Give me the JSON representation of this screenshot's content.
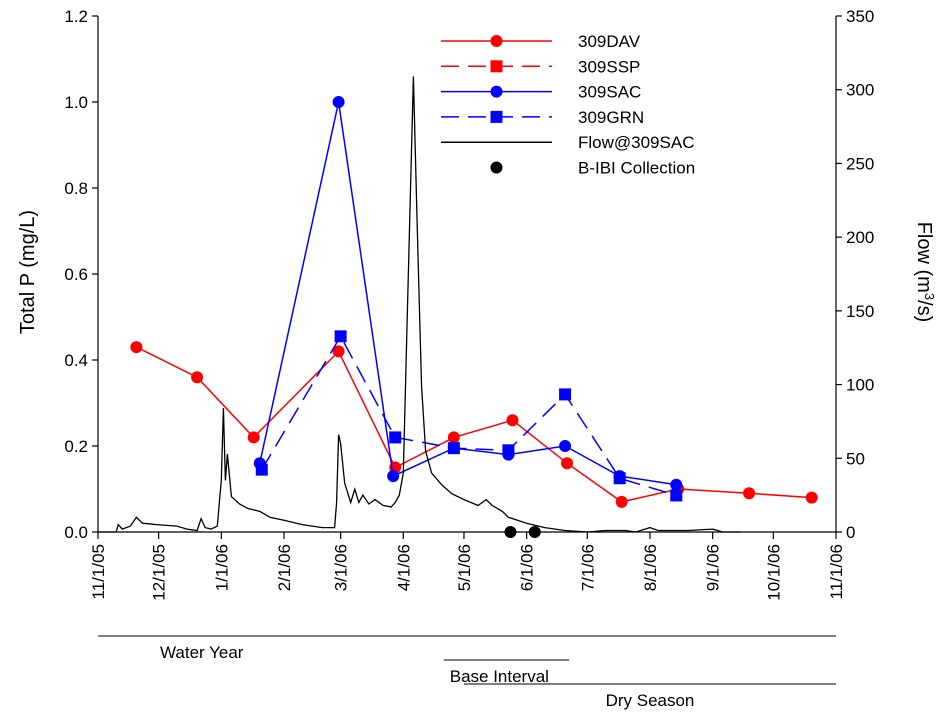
{
  "chart_data": {
    "type": "line",
    "ylabel_left": "Total P (mg/L)",
    "ylabel_right_prefix": "Flow (m",
    "ylabel_right_sup": "3",
    "ylabel_right_suffix": "/s)",
    "xlim": [
      "2005-11-01",
      "2006-11-01"
    ],
    "ylim_left": [
      0,
      1.2
    ],
    "ylim_right": [
      0,
      350
    ],
    "x_ticks": [
      "11/1/05",
      "12/1/05",
      "1/1/06",
      "2/1/06",
      "3/1/06",
      "4/1/06",
      "5/1/06",
      "6/1/06",
      "7/1/06",
      "8/1/06",
      "9/1/06",
      "10/1/06",
      "11/1/06"
    ],
    "y_ticks_left": [
      "0.0",
      "0.2",
      "0.4",
      "0.6",
      "0.8",
      "1.0",
      "1.2"
    ],
    "y_ticks_right": [
      "0",
      "50",
      "100",
      "150",
      "200",
      "250",
      "300",
      "350"
    ],
    "legend_position": "top-right",
    "series": [
      {
        "name": "309DAV",
        "axis": "left",
        "color": "#ff0000",
        "marker": "circle",
        "line": "solid",
        "points": [
          [
            "2005-11-20",
            0.43
          ],
          [
            "2005-12-20",
            0.36
          ],
          [
            "2006-01-17",
            0.22
          ],
          [
            "2006-02-28",
            0.42
          ],
          [
            "2006-03-28",
            0.15
          ],
          [
            "2006-04-26",
            0.22
          ],
          [
            "2006-05-25",
            0.26
          ],
          [
            "2006-06-21",
            0.16
          ],
          [
            "2006-07-18",
            0.07
          ],
          [
            "2006-08-15",
            0.1
          ],
          [
            "2006-09-19",
            0.09
          ],
          [
            "2006-10-20",
            0.08
          ]
        ]
      },
      {
        "name": "309SSP",
        "axis": "left",
        "color": "#ff0000",
        "marker": "square",
        "line": "dashed",
        "points": []
      },
      {
        "name": "309SAC",
        "axis": "left",
        "color": "#0000ff",
        "marker": "circle",
        "line": "solid",
        "points": [
          [
            "2006-01-20",
            0.16
          ],
          [
            "2006-02-28",
            1.0
          ],
          [
            "2006-03-27",
            0.13
          ],
          [
            "2006-04-26",
            0.195
          ],
          [
            "2006-05-23",
            0.18
          ],
          [
            "2006-06-20",
            0.2
          ],
          [
            "2006-07-17",
            0.13
          ],
          [
            "2006-08-14",
            0.11
          ]
        ]
      },
      {
        "name": "309GRN",
        "axis": "left",
        "color": "#0000ff",
        "marker": "square",
        "line": "dashed",
        "points": [
          [
            "2006-01-21",
            0.145
          ],
          [
            "2006-03-01",
            0.455
          ],
          [
            "2006-03-28",
            0.22
          ],
          [
            "2006-04-26",
            0.195
          ],
          [
            "2006-05-23",
            0.19
          ],
          [
            "2006-06-20",
            0.32
          ],
          [
            "2006-07-17",
            0.125
          ],
          [
            "2006-08-14",
            0.085
          ]
        ]
      },
      {
        "name": "Flow@309SAC",
        "axis": "right",
        "color": "#000000",
        "marker": "none",
        "line": "solid",
        "points": [
          [
            "2005-11-01",
            0
          ],
          [
            "2005-11-10",
            0
          ],
          [
            "2005-11-11",
            5
          ],
          [
            "2005-11-13",
            2
          ],
          [
            "2005-11-17",
            4
          ],
          [
            "2005-11-20",
            10
          ],
          [
            "2005-11-23",
            6
          ],
          [
            "2005-11-30",
            5
          ],
          [
            "2005-12-10",
            4
          ],
          [
            "2005-12-15",
            2
          ],
          [
            "2005-12-20",
            1
          ],
          [
            "2005-12-22",
            9
          ],
          [
            "2005-12-24",
            3
          ],
          [
            "2005-12-27",
            2
          ],
          [
            "2005-12-30",
            4
          ],
          [
            "2006-01-01",
            35
          ],
          [
            "2006-01-02",
            84
          ],
          [
            "2006-01-03",
            35
          ],
          [
            "2006-01-04",
            53
          ],
          [
            "2006-01-06",
            24
          ],
          [
            "2006-01-10",
            19
          ],
          [
            "2006-01-14",
            16
          ],
          [
            "2006-01-20",
            14
          ],
          [
            "2006-01-25",
            10
          ],
          [
            "2006-02-01",
            8
          ],
          [
            "2006-02-10",
            5
          ],
          [
            "2006-02-20",
            3
          ],
          [
            "2006-02-26",
            3
          ],
          [
            "2006-02-27",
            20
          ],
          [
            "2006-02-28",
            66
          ],
          [
            "2006-03-01",
            60
          ],
          [
            "2006-03-03",
            33
          ],
          [
            "2006-03-06",
            20
          ],
          [
            "2006-03-08",
            29
          ],
          [
            "2006-03-10",
            20
          ],
          [
            "2006-03-12",
            25
          ],
          [
            "2006-03-15",
            19
          ],
          [
            "2006-03-18",
            22
          ],
          [
            "2006-03-22",
            18
          ],
          [
            "2006-03-26",
            17
          ],
          [
            "2006-03-28",
            20
          ],
          [
            "2006-03-30",
            25
          ],
          [
            "2006-04-01",
            40
          ],
          [
            "2006-04-03",
            150
          ],
          [
            "2006-04-06",
            309
          ],
          [
            "2006-04-08",
            200
          ],
          [
            "2006-04-10",
            100
          ],
          [
            "2006-04-12",
            55
          ],
          [
            "2006-04-15",
            40
          ],
          [
            "2006-04-20",
            32
          ],
          [
            "2006-04-25",
            26
          ],
          [
            "2006-05-01",
            22
          ],
          [
            "2006-05-08",
            18
          ],
          [
            "2006-05-12",
            22
          ],
          [
            "2006-05-15",
            18
          ],
          [
            "2006-05-20",
            14
          ],
          [
            "2006-05-23",
            10
          ],
          [
            "2006-06-01",
            6
          ],
          [
            "2006-06-10",
            3
          ],
          [
            "2006-06-20",
            1
          ],
          [
            "2006-07-01",
            0
          ],
          [
            "2006-07-10",
            1
          ],
          [
            "2006-07-20",
            1
          ],
          [
            "2006-07-25",
            0
          ],
          [
            "2006-08-01",
            3
          ],
          [
            "2006-08-05",
            1
          ],
          [
            "2006-08-20",
            1
          ],
          [
            "2006-09-01",
            2
          ],
          [
            "2006-09-06",
            0
          ],
          [
            "2006-09-15",
            0
          ]
        ]
      },
      {
        "name": "B-IBI Collection",
        "axis": "right",
        "color": "#000000",
        "marker": "circle",
        "line": "none",
        "points": [
          [
            "2006-05-24",
            0
          ],
          [
            "2006-06-05",
            0
          ]
        ]
      }
    ],
    "periods": [
      {
        "label": "Water Year",
        "start": "2005-11-01",
        "end": "2006-11-01",
        "label_align": "left"
      },
      {
        "label": "Base Interval",
        "start": "2006-04-21",
        "end": "2006-06-22",
        "label_align": "left"
      },
      {
        "label": "Dry Season",
        "start": "2006-05-01",
        "end": "2006-11-01",
        "label_align": "center"
      }
    ]
  }
}
